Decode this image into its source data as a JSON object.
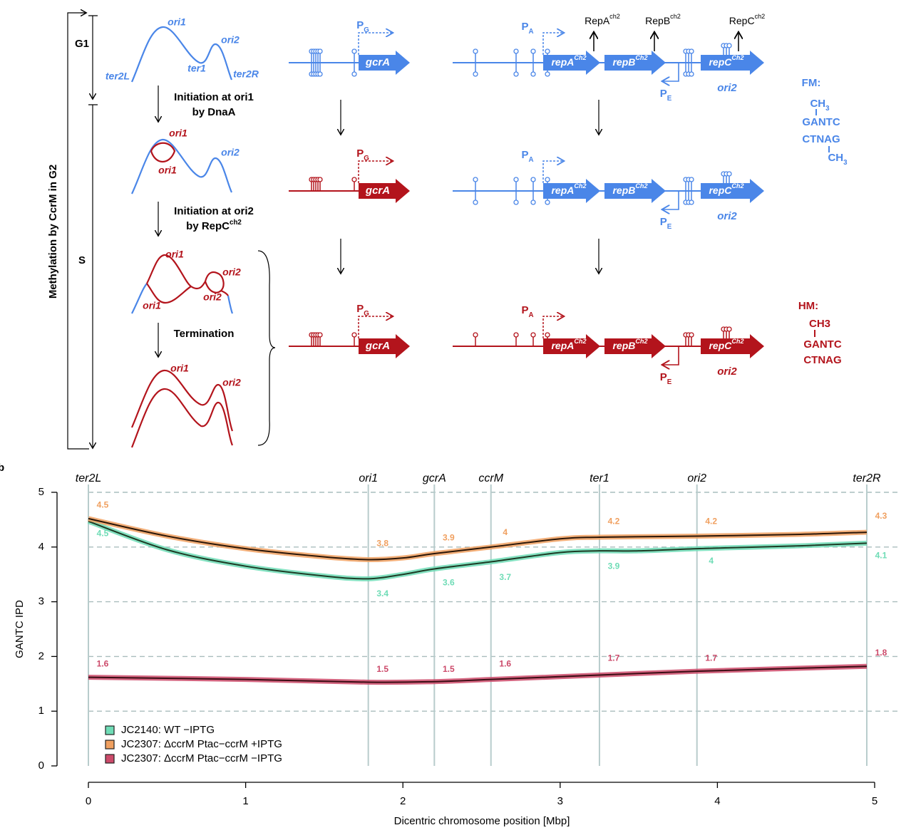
{
  "diagram": {
    "side_label": "Methylation by CcrM in G2",
    "phases": [
      "G1",
      "S"
    ],
    "steps": [
      "Initiation at ori1",
      "by DnaA",
      "Initiation at ori2",
      {
        "text": "by RepC",
        "sup": "ch2"
      },
      "Termination"
    ],
    "chromosomes": [
      {
        "labels": [
          "ori1",
          "ori2",
          "ter1",
          "ter2L",
          "ter2R"
        ]
      },
      {
        "labels": [
          "ori1",
          "ori1",
          "ori2"
        ]
      },
      {
        "labels": [
          "ori1",
          "ori1",
          "ori2",
          "ori2"
        ]
      },
      {
        "labels": [
          "ori1",
          "ori2"
        ]
      }
    ],
    "gcrA_rows": [
      {
        "promoter": {
          "text": "P",
          "sub": "G"
        },
        "gene": "gcrA"
      },
      {
        "promoter": {
          "text": "P",
          "sub": "G"
        },
        "gene": "gcrA"
      },
      {
        "promoter": {
          "text": "P",
          "sub": "G"
        },
        "gene": "gcrA"
      }
    ],
    "proteins": [
      {
        "text": "RepA",
        "sup": "ch2"
      },
      {
        "text": "RepB",
        "sup": "ch2"
      },
      {
        "text": "RepC",
        "sup": "ch2"
      }
    ],
    "rep_rows": [
      {
        "promoter_a": {
          "text": "P",
          "sub": "A"
        },
        "genes": [
          {
            "text": "repA",
            "sup": "Ch2"
          },
          {
            "text": "repB",
            "sup": "Ch2"
          },
          {
            "text": "repC",
            "sup": "Ch2"
          }
        ],
        "promoter_e": {
          "text": "P",
          "sub": "E"
        },
        "origin": "ori2"
      },
      {
        "promoter_a": {
          "text": "P",
          "sub": "A"
        },
        "genes": [
          {
            "text": "repA",
            "sup": "Ch2"
          },
          {
            "text": "repB",
            "sup": "Ch2"
          },
          {
            "text": "repC",
            "sup": "Ch2"
          }
        ],
        "promoter_e": {
          "text": "P",
          "sub": "E"
        },
        "origin": "ori2"
      },
      {
        "promoter_a": {
          "text": "P",
          "sub": "A"
        },
        "genes": [
          {
            "text": "repA",
            "sup": "Ch2"
          },
          {
            "text": "repB",
            "sup": "Ch2"
          },
          {
            "text": "repC",
            "sup": "Ch2"
          }
        ],
        "promoter_e": {
          "text": "P",
          "sub": "E"
        },
        "origin": "ori2"
      }
    ],
    "fm": {
      "title": "FM:",
      "lines": [
        {
          "text": "CH",
          "sub": "3"
        },
        "GANTC",
        "CTNAG",
        {
          "text": "CH",
          "sub": "3"
        }
      ]
    },
    "hm": {
      "title": "HM:",
      "lines": [
        "CH3",
        "GANTC",
        "CTNAG"
      ]
    }
  },
  "chart_data": {
    "type": "line",
    "panel": "b",
    "ylabel": "GANTC IPD",
    "xlabel": "Dicentric chromosome position [Mbp]",
    "xlim": [
      0,
      5
    ],
    "ylim": [
      0,
      5
    ],
    "xticks": [
      0,
      1,
      2,
      3,
      4,
      5
    ],
    "yticks": [
      0,
      1,
      2,
      3,
      4,
      5
    ],
    "grid": true,
    "legend": "lower left",
    "markers": [
      {
        "label": "ter2L",
        "x": 0
      },
      {
        "label": "ori1",
        "x": 1.78
      },
      {
        "label": "gcrA",
        "x": 2.2
      },
      {
        "label": "ccrM",
        "x": 2.56
      },
      {
        "label": "ter1",
        "x": 3.25
      },
      {
        "label": "ori2",
        "x": 3.87
      },
      {
        "label": "ter2R",
        "x": 4.95
      }
    ],
    "series": [
      {
        "name": "JC2140: WT −IPTG",
        "color": "#6fdcb6",
        "line_color": "#1d3b24",
        "x": [
          0,
          0.5,
          1.0,
          1.5,
          1.78,
          2.0,
          2.2,
          2.56,
          3.0,
          3.25,
          3.5,
          3.87,
          4.5,
          4.95
        ],
        "values": [
          4.47,
          3.95,
          3.65,
          3.47,
          3.42,
          3.5,
          3.6,
          3.73,
          3.9,
          3.93,
          3.93,
          3.97,
          4.02,
          4.07
        ],
        "labels": [
          4.5,
          3.4,
          3.6,
          3.7,
          3.9,
          4,
          4.1
        ]
      },
      {
        "name": "JC2307: ΔccrM Ptac−ccrM +IPTG",
        "color": "#f0a060",
        "line_color": "#2a1608",
        "x": [
          0,
          0.5,
          1.0,
          1.5,
          1.78,
          2.0,
          2.2,
          2.56,
          3.0,
          3.25,
          3.87,
          4.5,
          4.95
        ],
        "values": [
          4.52,
          4.2,
          3.97,
          3.82,
          3.77,
          3.8,
          3.88,
          4.0,
          4.15,
          4.18,
          4.2,
          4.23,
          4.27
        ],
        "labels": [
          4.5,
          3.8,
          3.9,
          4,
          4.2,
          4.2,
          4.3
        ]
      },
      {
        "name": "JC2307: ΔccrM Ptac−ccrM −IPTG",
        "color": "#cc4a6a",
        "line_color": "#3a0d14",
        "x": [
          0,
          1.0,
          1.78,
          2.2,
          2.56,
          3.25,
          3.87,
          4.95
        ],
        "values": [
          1.62,
          1.58,
          1.53,
          1.54,
          1.58,
          1.66,
          1.73,
          1.82
        ],
        "labels": [
          1.6,
          1.5,
          1.5,
          1.6,
          1.7,
          1.7,
          1.8
        ]
      }
    ]
  }
}
